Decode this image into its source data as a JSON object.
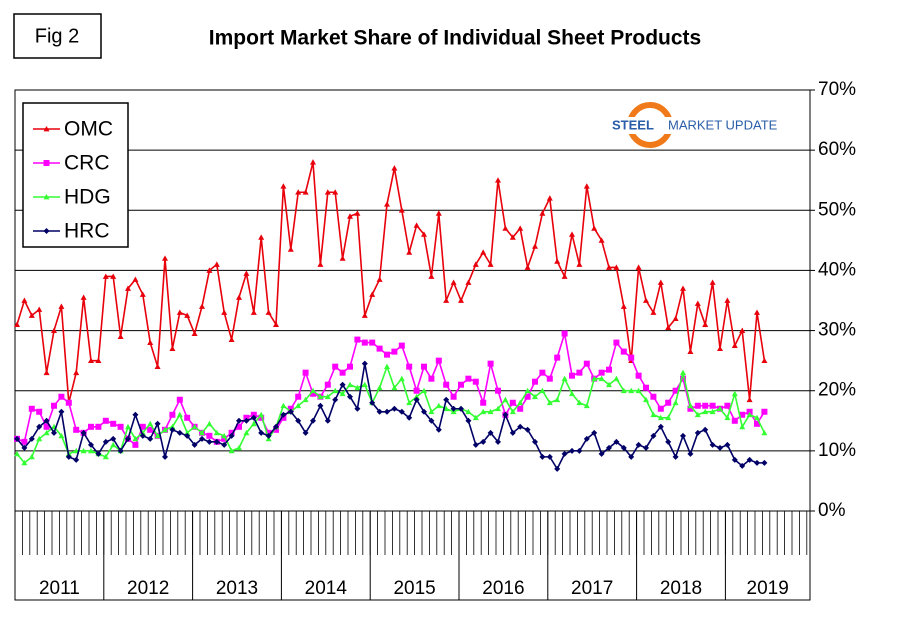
{
  "chart_data": {
    "type": "line",
    "figure_label": "Fig 2",
    "title": "Import Market Share of Individual Sheet Products",
    "logo": {
      "brand": "STEEL",
      "rest": "MARKET UPDATE"
    },
    "categories": [
      "2011",
      null,
      null,
      null,
      null,
      null,
      null,
      null,
      null,
      null,
      null,
      null,
      "2012",
      null,
      null,
      null,
      null,
      null,
      null,
      null,
      null,
      null,
      null,
      null,
      "2013",
      null,
      null,
      null,
      null,
      null,
      null,
      null,
      null,
      null,
      null,
      null,
      "2014",
      null,
      null,
      null,
      null,
      null,
      null,
      null,
      null,
      null,
      null,
      null,
      "2015",
      null,
      null,
      null,
      null,
      null,
      null,
      null,
      null,
      null,
      null,
      null,
      "2016",
      null,
      null,
      null,
      null,
      null,
      null,
      null,
      null,
      null,
      null,
      null,
      "2017",
      null,
      null,
      null,
      null,
      null,
      null,
      null,
      null,
      null,
      null,
      null,
      "2018",
      null,
      null,
      null,
      null,
      null,
      null,
      null,
      null,
      null,
      null,
      null,
      "2019",
      null,
      null,
      null,
      null,
      null
    ],
    "ylim": [
      0,
      70
    ],
    "yticks": [
      {
        "value": 0,
        "label": "0%"
      },
      {
        "value": 10,
        "label": "10%"
      },
      {
        "value": 20,
        "label": "20%"
      },
      {
        "value": 30,
        "label": "30%"
      },
      {
        "value": 40,
        "label": "40%"
      },
      {
        "value": 50,
        "label": "50%"
      },
      {
        "value": 60,
        "label": "60%"
      },
      {
        "value": 70,
        "label": "70%"
      }
    ],
    "grid": true,
    "legend": "top-left",
    "series": [
      {
        "name": "OMC",
        "color": "#e8000b",
        "marker": "triangle",
        "values": [
          31,
          35,
          32.5,
          33.5,
          23,
          30,
          34,
          18,
          23,
          35.5,
          25,
          25,
          39,
          39,
          29,
          37,
          38.5,
          36,
          28,
          24,
          42,
          27,
          33,
          32.5,
          29.5,
          34,
          40,
          41,
          33,
          28.5,
          35.5,
          39.5,
          33,
          45.5,
          33,
          31,
          54,
          43.5,
          53,
          53,
          58,
          41,
          53,
          53,
          42,
          49,
          49.5,
          32.5,
          36,
          38.5,
          51,
          57,
          50,
          43,
          47.5,
          46,
          39,
          49.5,
          35,
          38,
          35,
          38,
          41,
          43,
          41,
          55,
          47,
          45.5,
          47,
          40.5,
          44,
          49.5,
          52,
          41.5,
          39,
          46,
          41,
          54,
          47,
          45,
          40.5,
          40.5,
          34,
          25,
          40.5,
          35,
          33,
          38,
          30.5,
          32,
          37,
          26.5,
          34.5,
          31,
          38,
          27,
          35,
          27.5,
          30,
          18.5,
          33,
          25
        ]
      },
      {
        "name": "CRC",
        "color": "#ff00ff",
        "marker": "square",
        "values": [
          12,
          11.5,
          17,
          16.5,
          14,
          17.5,
          19,
          18,
          13.5,
          13,
          14,
          14,
          15,
          14.5,
          14,
          12,
          11,
          14,
          13.5,
          12.5,
          13.5,
          16,
          18.5,
          15.5,
          14,
          13,
          12.5,
          11.5,
          12,
          13,
          14,
          15.5,
          16,
          15.5,
          13,
          13.5,
          15.5,
          17,
          19,
          23,
          19.5,
          19,
          21,
          24,
          23,
          24,
          28.5,
          28,
          28,
          27,
          26,
          26.5,
          27.5,
          24,
          20,
          24,
          22,
          25,
          21,
          19,
          21,
          22,
          21.5,
          18,
          24.5,
          20,
          16,
          18,
          17,
          19,
          21.5,
          23,
          22,
          25.5,
          29.5,
          22.5,
          23,
          24.5,
          22,
          23,
          23.5,
          28,
          26.5,
          25.5,
          22.5,
          20.5,
          19,
          17,
          18,
          20,
          22,
          17,
          17.5,
          17.5,
          17.5,
          17,
          17.5,
          15,
          16,
          16.5,
          14.5,
          16.5
        ]
      },
      {
        "name": "HDG",
        "color": "#33ff33",
        "marker": "triangle",
        "values": [
          9.5,
          8,
          9,
          12,
          13,
          14,
          12.5,
          9.5,
          10,
          10,
          10,
          9.5,
          9,
          11,
          10,
          14,
          12,
          13,
          14.5,
          12.5,
          13.5,
          14,
          16,
          13,
          14,
          13,
          14.5,
          13,
          12.5,
          10,
          10.5,
          13,
          14.5,
          16,
          12,
          14,
          17.5,
          16.5,
          17.5,
          18.5,
          20,
          19,
          19,
          20,
          19.5,
          21,
          20.5,
          21,
          18,
          20.5,
          24,
          20.5,
          22,
          18,
          19,
          20,
          16.5,
          17.5,
          17,
          16.5,
          17,
          16.5,
          15.5,
          16.5,
          16.5,
          17,
          18.5,
          16.5,
          18,
          20,
          19,
          20,
          18,
          18.5,
          22,
          19.5,
          18,
          17.5,
          22,
          22,
          21,
          22,
          20,
          20,
          20,
          18.5,
          16,
          15.5,
          15.5,
          18,
          23,
          17.5,
          16,
          16.5,
          16.5,
          17,
          15.5,
          19.5,
          14,
          16,
          15.5,
          13
        ]
      },
      {
        "name": "HRC",
        "color": "#000066",
        "marker": "diamond",
        "values": [
          12,
          10.5,
          12,
          14,
          15,
          13,
          16.5,
          9,
          8.5,
          13,
          11,
          9.5,
          11.5,
          12,
          10,
          12,
          16,
          12.5,
          12,
          14.5,
          9,
          13.5,
          13,
          12.5,
          11,
          12,
          11.5,
          11.5,
          11,
          12.5,
          15,
          15,
          15.5,
          13,
          12.5,
          14,
          16,
          16.5,
          15,
          13,
          15,
          17.5,
          15,
          18.5,
          21,
          19,
          17,
          24.5,
          18,
          16.5,
          16.5,
          17,
          16.5,
          15.5,
          18.5,
          16.5,
          15,
          13.5,
          18.5,
          17,
          17,
          15,
          11,
          11.5,
          13,
          11.5,
          16,
          13,
          14,
          13.5,
          11.5,
          9,
          9,
          7,
          9.5,
          10,
          10,
          12,
          13,
          9.5,
          10.5,
          11.5,
          10.5,
          9,
          11,
          10.5,
          12.5,
          14,
          11.5,
          9,
          12.5,
          9.5,
          13,
          13.5,
          11,
          10.5,
          11,
          8.5,
          7.5,
          8.5,
          8,
          8
        ]
      }
    ]
  }
}
